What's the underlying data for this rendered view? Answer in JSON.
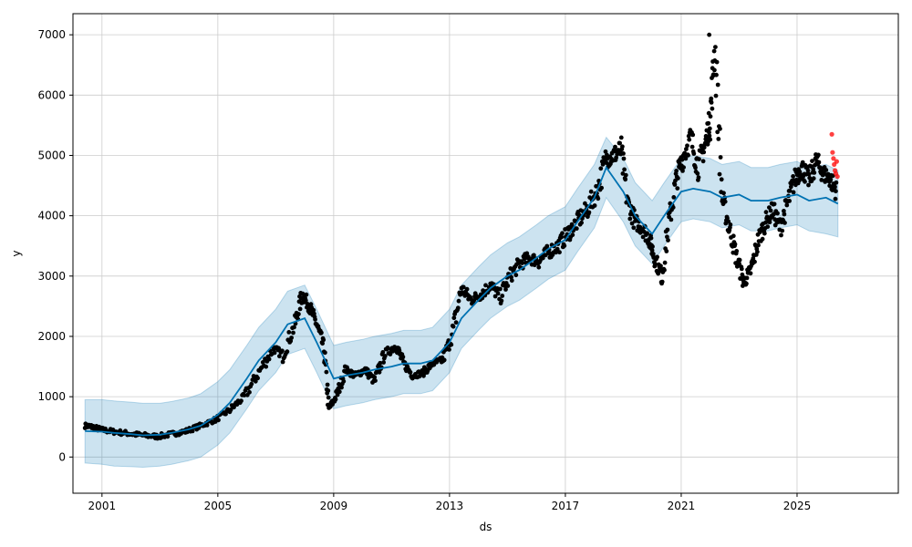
{
  "chart_data": {
    "type": "scatter",
    "title": "",
    "xlabel": "ds",
    "ylabel": "y",
    "x_ticks": [
      "2001",
      "2005",
      "2009",
      "2013",
      "2017",
      "2021",
      "2025"
    ],
    "y_ticks": [
      "0",
      "1000",
      "2000",
      "3000",
      "4000",
      "5000",
      "6000",
      "7000"
    ],
    "xlim": [
      "2000-01-01",
      "2028-07-01"
    ],
    "ylim": [
      -600,
      7350
    ],
    "grid": true,
    "colors": {
      "observed": "#000000",
      "forecast": "#0072B2",
      "uncertainty": "#0072B2",
      "holdout": "#ff0000"
    },
    "series": [
      {
        "kind": "observed",
        "x": [
          "2000-06-01",
          "2000-09-01",
          "2001-01-01",
          "2001-06-01",
          "2001-12-01",
          "2002-06-01",
          "2002-12-01",
          "2003-06-01",
          "2003-12-01",
          "2004-06-01",
          "2004-12-01",
          "2005-06-01",
          "2005-12-01",
          "2006-06-01",
          "2006-12-01",
          "2007-04-01",
          "2007-09-01",
          "2007-12-01",
          "2008-03-01",
          "2008-06-01",
          "2008-09-01",
          "2008-11-01",
          "2009-02-01",
          "2009-06-01",
          "2009-10-01",
          "2010-02-01",
          "2010-06-01",
          "2010-10-01",
          "2011-03-01",
          "2011-06-01",
          "2011-10-01",
          "2012-02-01",
          "2012-06-01",
          "2012-10-01",
          "2013-02-01",
          "2013-06-01",
          "2013-10-01",
          "2014-02-01",
          "2014-06-01",
          "2014-10-01",
          "2015-02-01",
          "2015-06-01",
          "2015-10-01",
          "2016-02-01",
          "2016-06-01",
          "2016-10-01",
          "2017-02-01",
          "2017-06-01",
          "2017-10-01",
          "2018-02-01",
          "2018-06-01",
          "2018-09-01",
          "2018-12-01",
          "2019-03-01",
          "2019-06-01",
          "2019-09-01",
          "2019-12-01",
          "2020-02-01",
          "2020-05-01",
          "2020-08-01",
          "2020-11-01",
          "2021-02-01",
          "2021-05-01",
          "2021-08-01",
          "2021-11-01",
          "2022-01-01",
          "2022-03-01",
          "2022-06-01",
          "2022-09-01",
          "2022-12-01",
          "2023-03-01",
          "2023-06-01",
          "2023-09-01",
          "2023-12-01",
          "2024-03-01",
          "2024-06-01",
          "2024-09-01",
          "2024-12-01",
          "2025-03-01",
          "2025-06-01",
          "2025-09-01",
          "2025-12-01",
          "2026-03-01",
          "2026-05-15"
        ],
        "y": [
          520,
          500,
          450,
          420,
          390,
          360,
          340,
          380,
          430,
          520,
          620,
          780,
          1000,
          1400,
          1800,
          1700,
          2200,
          2700,
          2500,
          2200,
          1800,
          800,
          1000,
          1450,
          1350,
          1450,
          1250,
          1700,
          1850,
          1550,
          1350,
          1400,
          1550,
          1600,
          2000,
          2800,
          2600,
          2700,
          2850,
          2650,
          3000,
          3200,
          3300,
          3250,
          3400,
          3500,
          3700,
          3900,
          4100,
          4400,
          4950,
          5000,
          5100,
          4200,
          3900,
          3800,
          3600,
          3300,
          3000,
          3900,
          4600,
          5000,
          5300,
          4800,
          5200,
          5600,
          6800,
          4300,
          3800,
          3300,
          2900,
          3100,
          3600,
          3900,
          4100,
          3800,
          4200,
          4600,
          4800,
          4600,
          4900,
          4700,
          4600,
          4400
        ]
      },
      {
        "kind": "forecast",
        "name": "",
        "x": [
          "2000-06-01",
          "2001-01-01",
          "2001-06-01",
          "2002-01-01",
          "2002-06-01",
          "2003-01-01",
          "2003-06-01",
          "2004-01-01",
          "2004-06-01",
          "2005-01-01",
          "2005-06-01",
          "2006-01-01",
          "2006-06-01",
          "2007-01-01",
          "2007-06-01",
          "2008-01-01",
          "2008-06-01",
          "2009-01-01",
          "2009-06-01",
          "2010-01-01",
          "2010-06-01",
          "2011-01-01",
          "2011-06-01",
          "2012-01-01",
          "2012-06-01",
          "2013-01-01",
          "2013-06-01",
          "2014-01-01",
          "2014-06-01",
          "2015-01-01",
          "2015-06-01",
          "2016-01-01",
          "2016-06-01",
          "2017-01-01",
          "2017-06-01",
          "2018-01-01",
          "2018-06-01",
          "2019-01-01",
          "2019-06-01",
          "2020-01-01",
          "2020-06-01",
          "2021-01-01",
          "2021-06-01",
          "2022-01-01",
          "2022-06-01",
          "2023-01-01",
          "2023-06-01",
          "2024-01-01",
          "2024-06-01",
          "2025-01-01",
          "2025-06-01",
          "2026-01-01",
          "2026-06-01"
        ],
        "y": [
          430,
          420,
          400,
          380,
          360,
          370,
          400,
          460,
          520,
          700,
          900,
          1300,
          1600,
          1900,
          2200,
          2300,
          1900,
          1300,
          1350,
          1400,
          1450,
          1500,
          1550,
          1550,
          1600,
          1900,
          2300,
          2600,
          2800,
          3000,
          3100,
          3300,
          3450,
          3600,
          3900,
          4300,
          4800,
          4400,
          4000,
          3700,
          4000,
          4400,
          4450,
          4400,
          4300,
          4350,
          4250,
          4250,
          4300,
          4350,
          4250,
          4300,
          4200
        ]
      },
      {
        "kind": "uncertainty",
        "x": [
          "2000-06-01",
          "2001-01-01",
          "2001-06-01",
          "2002-01-01",
          "2002-06-01",
          "2003-01-01",
          "2003-06-01",
          "2004-01-01",
          "2004-06-01",
          "2005-01-01",
          "2005-06-01",
          "2006-01-01",
          "2006-06-01",
          "2007-01-01",
          "2007-06-01",
          "2008-01-01",
          "2008-06-01",
          "2009-01-01",
          "2009-06-01",
          "2010-01-01",
          "2010-06-01",
          "2011-01-01",
          "2011-06-01",
          "2012-01-01",
          "2012-06-01",
          "2013-01-01",
          "2013-06-01",
          "2014-01-01",
          "2014-06-01",
          "2015-01-01",
          "2015-06-01",
          "2016-01-01",
          "2016-06-01",
          "2017-01-01",
          "2017-06-01",
          "2018-01-01",
          "2018-06-01",
          "2019-01-01",
          "2019-06-01",
          "2020-01-01",
          "2020-06-01",
          "2021-01-01",
          "2021-06-01",
          "2022-01-01",
          "2022-06-01",
          "2023-01-01",
          "2023-06-01",
          "2024-01-01",
          "2024-06-01",
          "2025-01-01",
          "2025-06-01",
          "2026-01-01",
          "2026-06-01"
        ],
        "lower": [
          -100,
          -120,
          -150,
          -160,
          -170,
          -150,
          -120,
          -60,
          0,
          200,
          400,
          800,
          1100,
          1400,
          1700,
          1800,
          1400,
          800,
          850,
          900,
          950,
          1000,
          1050,
          1050,
          1100,
          1400,
          1800,
          2100,
          2300,
          2500,
          2600,
          2800,
          2950,
          3100,
          3400,
          3800,
          4300,
          3900,
          3500,
          3200,
          3500,
          3900,
          3950,
          3900,
          3800,
          3850,
          3750,
          3750,
          3800,
          3850,
          3750,
          3700,
          3650
        ],
        "upper": [
          950,
          950,
          930,
          910,
          890,
          890,
          920,
          980,
          1050,
          1250,
          1450,
          1850,
          2150,
          2450,
          2750,
          2850,
          2450,
          1850,
          1900,
          1950,
          2000,
          2050,
          2100,
          2100,
          2150,
          2450,
          2850,
          3150,
          3350,
          3550,
          3650,
          3850,
          4000,
          4150,
          4450,
          4850,
          5300,
          4950,
          4550,
          4250,
          4550,
          4950,
          5000,
          4950,
          4850,
          4900,
          4800,
          4800,
          4850,
          4900,
          4800,
          4850,
          4750
        ]
      },
      {
        "kind": "holdout",
        "x": [
          "2026-03-15",
          "2026-03-25",
          "2026-04-05",
          "2026-04-15",
          "2026-04-25",
          "2026-05-05",
          "2026-05-15",
          "2026-05-25"
        ],
        "y": [
          5350,
          5050,
          4950,
          4850,
          4750,
          4700,
          4900,
          4650
        ]
      }
    ]
  }
}
